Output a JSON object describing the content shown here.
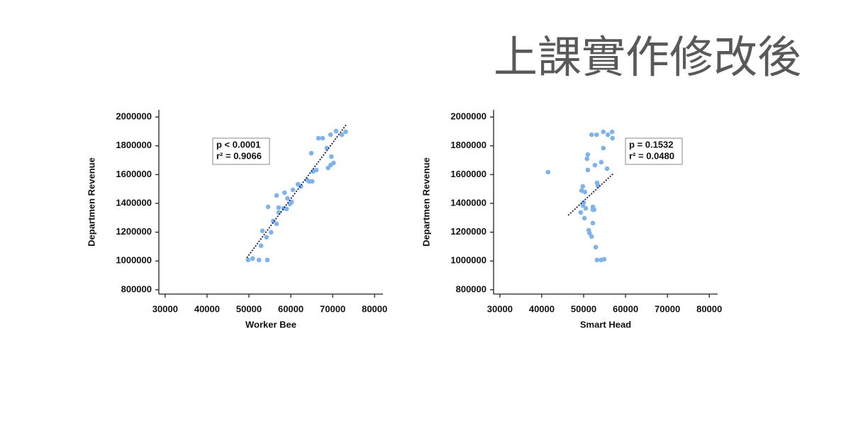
{
  "title": "上課實作修改後",
  "chart_data": [
    {
      "type": "scatter",
      "x_label": "Worker Bee",
      "y_label": "Departmen Revenue",
      "annotations": [
        "p < 0.0001",
        "r² = 0.9066"
      ],
      "xlim": [
        28500,
        82000
      ],
      "ylim": [
        770000,
        2050000
      ],
      "xticks": [
        30000,
        40000,
        50000,
        60000,
        70000,
        80000
      ],
      "yticks": [
        800000,
        1000000,
        1200000,
        1400000,
        1600000,
        1800000,
        2000000
      ],
      "color": "#7fb3ec",
      "trend_line": {
        "x": [
          49500,
          73200
        ],
        "y": [
          1022000,
          1946000
        ],
        "color": "#1a1a4e"
      },
      "x": [
        49800,
        50900,
        52400,
        54400,
        52900,
        53200,
        54200,
        54600,
        55300,
        55800,
        56600,
        56600,
        57100,
        57100,
        58300,
        58500,
        59000,
        59200,
        59800,
        60200,
        60500,
        61700,
        62400,
        63900,
        64400,
        65100,
        64900,
        65300,
        66100,
        66600,
        67600,
        68600,
        68900,
        69500,
        69500,
        69700,
        70200,
        70800,
        72200,
        73100
      ],
      "y": [
        1007000,
        1017000,
        1007000,
        1007000,
        1106000,
        1209000,
        1165000,
        1376000,
        1199000,
        1278000,
        1258000,
        1455000,
        1337000,
        1371000,
        1366000,
        1474000,
        1361000,
        1435000,
        1396000,
        1410000,
        1494000,
        1533000,
        1518000,
        1563000,
        1553000,
        1553000,
        1749000,
        1622000,
        1632000,
        1853000,
        1853000,
        1784000,
        1646000,
        1666000,
        1877000,
        1725000,
        1681000,
        1902000,
        1877000,
        1897000
      ]
    },
    {
      "type": "scatter",
      "x_label": "Smart Head",
      "y_label": "Departmen Revenue",
      "annotations": [
        "p  = 0.1532",
        "r² = 0.0480"
      ],
      "xlim": [
        28500,
        82000
      ],
      "ylim": [
        770000,
        2050000
      ],
      "xticks": [
        30000,
        40000,
        50000,
        60000,
        70000,
        80000
      ],
      "yticks": [
        800000,
        1000000,
        1200000,
        1400000,
        1600000,
        1800000,
        2000000
      ],
      "color": "#7fb3ec",
      "trend_line": {
        "x": [
          46300,
          57100
        ],
        "y": [
          1317000,
          1607000
        ],
        "color": "#1a1a4e"
      },
      "x": [
        41500,
        49300,
        49500,
        49800,
        50000,
        49800,
        50300,
        50200,
        50500,
        51000,
        50800,
        51000,
        51200,
        51400,
        51900,
        52200,
        51900,
        52200,
        52200,
        52700,
        52500,
        52900,
        53100,
        53200,
        53200,
        53400,
        54200,
        54200,
        54900,
        54700,
        54700,
        55600,
        55800,
        56800,
        56900
      ],
      "y": [
        1617000,
        1337000,
        1489000,
        1518000,
        1405000,
        1386000,
        1479000,
        1297000,
        1366000,
        1739000,
        1710000,
        1632000,
        1214000,
        1194000,
        1170000,
        1263000,
        1877000,
        1356000,
        1376000,
        1666000,
        1356000,
        1096000,
        1877000,
        1007000,
        1543000,
        1523000,
        1007000,
        1686000,
        1012000,
        1784000,
        1897000,
        1641000,
        1877000,
        1897000,
        1853000
      ]
    }
  ]
}
